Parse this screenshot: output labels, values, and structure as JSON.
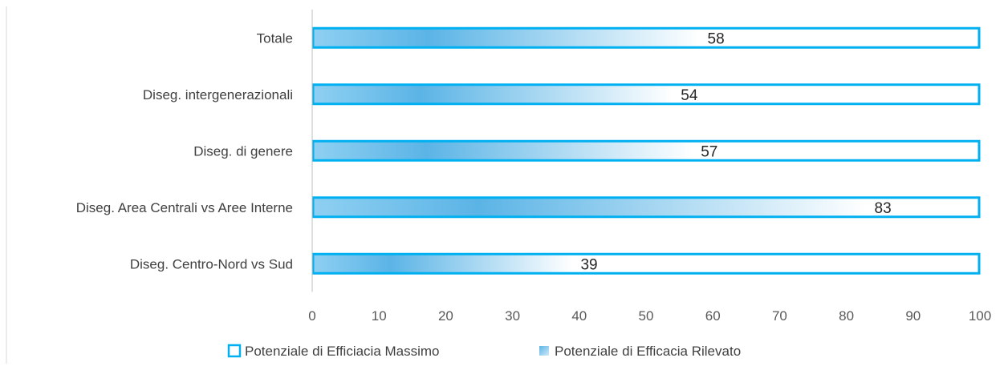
{
  "chart_data": {
    "type": "bar",
    "orientation": "horizontal",
    "categories": [
      "Totale",
      "Diseg. intergenerazionali",
      "Diseg. di genere",
      "Diseg. Area Centrali vs Aree Interne",
      "Diseg. Centro-Nord vs Sud"
    ],
    "series": [
      {
        "name": "Potenziale di Efficiacia Massimo",
        "values": [
          100,
          100,
          100,
          100,
          100
        ],
        "style": "outline"
      },
      {
        "name": "Potenziale di Efficacia Rilevato",
        "values": [
          58,
          54,
          57,
          83,
          39
        ],
        "style": "gradient"
      }
    ],
    "data_labels": [
      "58",
      "54",
      "57",
      "83",
      "39"
    ],
    "xlim": [
      0,
      100
    ],
    "x_ticks": [
      "0",
      "10",
      "20",
      "30",
      "40",
      "50",
      "60",
      "70",
      "80",
      "90",
      "100"
    ],
    "grid": false,
    "legend_position": "bottom",
    "colors": {
      "outline": "#00b0f0",
      "gradient_dark": "#5bb4e6",
      "gradient_light": "#ffffff",
      "axis": "#bfbfbf"
    }
  }
}
